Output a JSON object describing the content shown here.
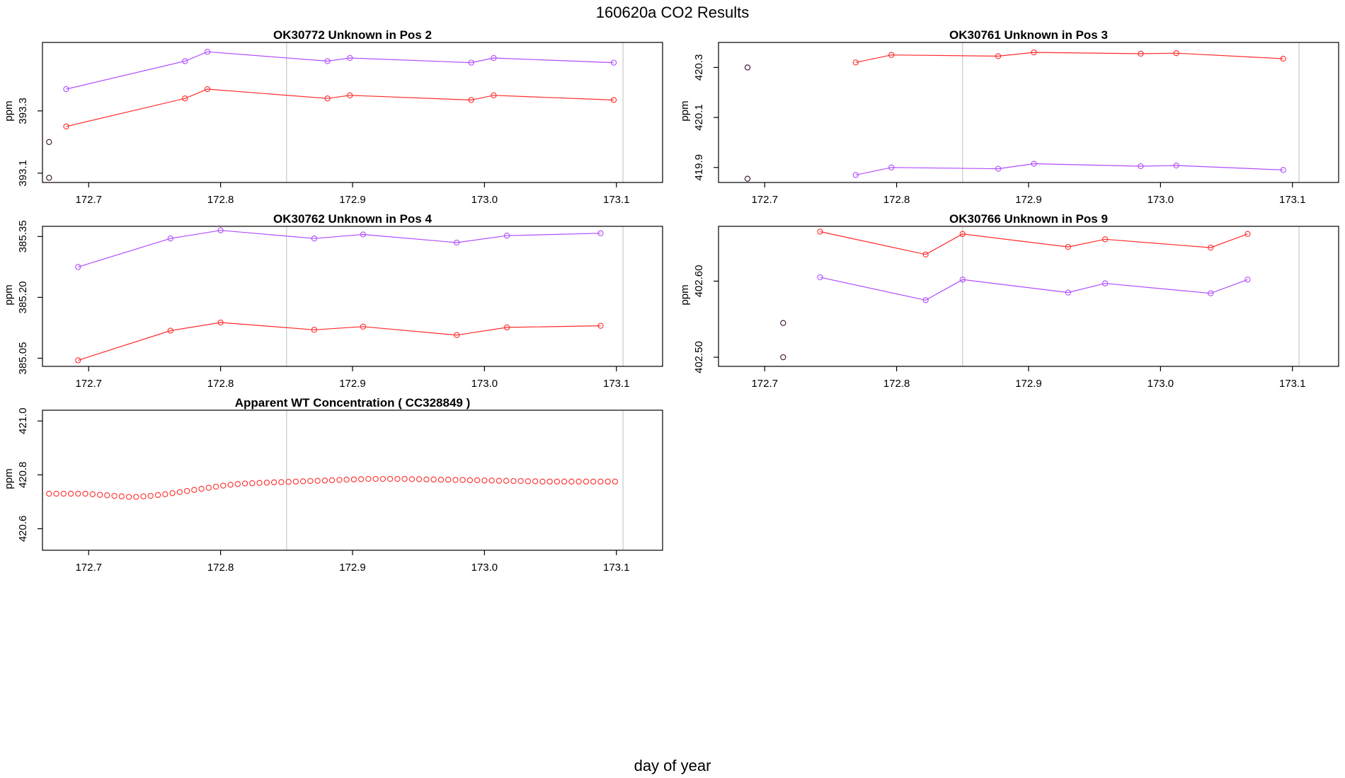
{
  "figure": {
    "title": "160620a  CO2 Results",
    "xlabel": "day of year"
  },
  "colors": {
    "red": "#ff2b2b",
    "purple": "#b04cff",
    "dark": "#3a0a2e",
    "gridline": "#bdbdbd"
  },
  "chart_data": [
    {
      "id": "p1",
      "type": "line",
      "title": "OK30772    Unknown in Pos 2",
      "ylabel": "ppm",
      "xlim": [
        172.665,
        173.135
      ],
      "ylim": [
        393.07,
        393.52
      ],
      "xticks": [
        172.7,
        172.8,
        172.9,
        173.0,
        173.1
      ],
      "xtick_labels": [
        "172.7",
        "172.8",
        "172.9",
        "173.0",
        "173.1"
      ],
      "yticks": [
        393.1,
        393.3
      ],
      "ytick_labels": [
        "393.1",
        "393.3"
      ],
      "vlines": [
        172.85,
        173.105
      ],
      "series": [
        {
          "name": "purple",
          "color": "#b04cff",
          "x": [
            172.683,
            172.773,
            172.79,
            172.881,
            172.898,
            172.99,
            173.007,
            173.098
          ],
          "y": [
            393.37,
            393.46,
            393.49,
            393.46,
            393.47,
            393.455,
            393.47,
            393.455
          ]
        },
        {
          "name": "red",
          "color": "#ff2b2b",
          "x": [
            172.683,
            172.773,
            172.79,
            172.881,
            172.898,
            172.99,
            173.007,
            173.098
          ],
          "y": [
            393.25,
            393.34,
            393.37,
            393.34,
            393.35,
            393.335,
            393.35,
            393.335
          ]
        },
        {
          "name": "reference",
          "color": "#3a0a2e",
          "x": [
            172.67,
            172.67
          ],
          "y": [
            393.2,
            393.085
          ],
          "points_only": true
        }
      ]
    },
    {
      "id": "p2",
      "type": "line",
      "title": "OK30761    Unknown in Pos 3",
      "ylabel": "ppm",
      "xlim": [
        172.665,
        173.135
      ],
      "ylim": [
        419.84,
        420.4
      ],
      "xticks": [
        172.7,
        172.8,
        172.9,
        173.0,
        173.1
      ],
      "xtick_labels": [
        "172.7",
        "172.8",
        "172.9",
        "173.0",
        "173.1"
      ],
      "yticks": [
        419.9,
        420.1,
        420.3
      ],
      "ytick_labels": [
        "419.9",
        "420.1",
        "420.3"
      ],
      "vlines": [
        172.85,
        173.105
      ],
      "series": [
        {
          "name": "red",
          "color": "#ff2b2b",
          "x": [
            172.769,
            172.796,
            172.877,
            172.904,
            172.985,
            173.012,
            173.093
          ],
          "y": [
            420.32,
            420.35,
            420.345,
            420.36,
            420.355,
            420.357,
            420.335
          ]
        },
        {
          "name": "purple",
          "color": "#b04cff",
          "x": [
            172.769,
            172.796,
            172.877,
            172.904,
            172.985,
            173.012,
            173.093
          ],
          "y": [
            419.87,
            419.9,
            419.895,
            419.915,
            419.905,
            419.908,
            419.89
          ]
        },
        {
          "name": "reference",
          "color": "#3a0a2e",
          "x": [
            172.687,
            172.687
          ],
          "y": [
            420.3,
            419.855
          ],
          "points_only": true
        }
      ]
    },
    {
      "id": "p3",
      "type": "line",
      "title": "OK30762    Unknown in Pos 4",
      "ylabel": "ppm",
      "xlim": [
        172.665,
        173.135
      ],
      "ylim": [
        385.03,
        385.375
      ],
      "xticks": [
        172.7,
        172.8,
        172.9,
        173.0,
        173.1
      ],
      "xtick_labels": [
        "172.7",
        "172.8",
        "172.9",
        "173.0",
        "173.1"
      ],
      "yticks": [
        385.05,
        385.2,
        385.35
      ],
      "ytick_labels": [
        "385.05",
        "385.20",
        "385.35"
      ],
      "vlines": [
        172.85,
        173.105
      ],
      "series": [
        {
          "name": "purple",
          "color": "#b04cff",
          "x": [
            172.692,
            172.762,
            172.8,
            172.871,
            172.908,
            172.979,
            173.017,
            173.088
          ],
          "y": [
            385.275,
            385.345,
            385.365,
            385.345,
            385.355,
            385.335,
            385.352,
            385.358
          ]
        },
        {
          "name": "red",
          "color": "#ff2b2b",
          "x": [
            172.692,
            172.762,
            172.8,
            172.871,
            172.908,
            172.979,
            173.017,
            173.088
          ],
          "y": [
            385.045,
            385.118,
            385.138,
            385.12,
            385.128,
            385.107,
            385.126,
            385.13
          ]
        }
      ]
    },
    {
      "id": "p4",
      "type": "line",
      "title": "OK30766    Unknown in Pos 9",
      "ylabel": "ppm",
      "xlim": [
        172.665,
        173.135
      ],
      "ylim": [
        402.488,
        402.672
      ],
      "xticks": [
        172.7,
        172.8,
        172.9,
        173.0,
        173.1
      ],
      "xtick_labels": [
        "172.7",
        "172.8",
        "172.9",
        "173.0",
        "173.1"
      ],
      "yticks": [
        402.5,
        402.6
      ],
      "ytick_labels": [
        "402.50",
        "402.60"
      ],
      "vlines": [
        172.85,
        173.105
      ],
      "series": [
        {
          "name": "red",
          "color": "#ff2b2b",
          "x": [
            172.742,
            172.822,
            172.85,
            172.93,
            172.958,
            173.038,
            173.066
          ],
          "y": [
            402.665,
            402.635,
            402.662,
            402.645,
            402.655,
            402.644,
            402.662
          ]
        },
        {
          "name": "purple",
          "color": "#b04cff",
          "x": [
            172.742,
            172.822,
            172.85,
            172.93,
            172.958,
            173.038,
            173.066
          ],
          "y": [
            402.605,
            402.575,
            402.602,
            402.585,
            402.597,
            402.584,
            402.602
          ]
        },
        {
          "name": "reference",
          "color": "#3a0a2e",
          "x": [
            172.714,
            172.714
          ],
          "y": [
            402.545,
            402.5
          ],
          "points_only": true
        }
      ]
    },
    {
      "id": "p5",
      "type": "scatter",
      "title": "Apparent WT Concentration ( CC328849 )",
      "ylabel": "ppm",
      "xlim": [
        172.665,
        173.135
      ],
      "ylim": [
        420.52,
        421.04
      ],
      "xticks": [
        172.7,
        172.8,
        172.9,
        173.0,
        173.1
      ],
      "xtick_labels": [
        "172.7",
        "172.8",
        "172.9",
        "173.0",
        "173.1"
      ],
      "yticks": [
        420.6,
        420.8,
        421.0
      ],
      "ytick_labels": [
        "420.6",
        "420.8",
        "421.0"
      ],
      "vlines": [
        172.85,
        173.105
      ],
      "series": [
        {
          "name": "apparent",
          "color": "#ff2b2b",
          "points_only": true,
          "x_start": 172.67,
          "x_step": 0.0055,
          "count": 79,
          "y": [
            420.73,
            420.73,
            420.73,
            420.73,
            420.73,
            420.73,
            420.728,
            420.726,
            420.724,
            420.722,
            420.72,
            420.718,
            420.718,
            420.72,
            420.722,
            420.725,
            420.728,
            420.732,
            420.736,
            420.74,
            420.744,
            420.748,
            420.752,
            420.756,
            420.76,
            420.763,
            420.766,
            420.768,
            420.769,
            420.77,
            420.771,
            420.772,
            420.773,
            420.774,
            420.775,
            420.776,
            420.777,
            420.778,
            420.779,
            420.78,
            420.781,
            420.782,
            420.783,
            420.784,
            420.785,
            420.785,
            420.785,
            420.785,
            420.785,
            420.785,
            420.784,
            420.784,
            420.783,
            420.783,
            420.782,
            420.782,
            420.781,
            420.781,
            420.78,
            420.78,
            420.779,
            420.779,
            420.778,
            420.778,
            420.777,
            420.777,
            420.776,
            420.776,
            420.775,
            420.775,
            420.775,
            420.775,
            420.775,
            420.775,
            420.775,
            420.775,
            420.775,
            420.775,
            420.775
          ]
        }
      ]
    }
  ]
}
